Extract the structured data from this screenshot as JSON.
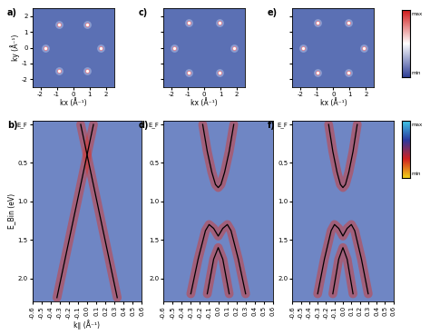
{
  "chart_data": [
    {
      "type": "scatter",
      "title": "a)",
      "xlabel": "kx (Å⁻¹)",
      "ylabel": "ky (Å⁻¹)",
      "xlim": [
        -2.5,
        2.5
      ],
      "ylim": [
        -2.5,
        2.5
      ],
      "xticks": [
        -2,
        -1,
        0,
        1,
        2
      ],
      "yticks": [
        -2,
        -1,
        0,
        1,
        2
      ],
      "tick_labels": true,
      "x": [
        1.7,
        0.85,
        -0.85,
        -1.7,
        -0.85,
        0.85
      ],
      "values": [
        0,
        1.47,
        1.47,
        0,
        -1.47,
        -1.47
      ],
      "color": "#ffffff"
    },
    {
      "type": "scatter",
      "title": "c)",
      "xlabel": "kx (Å⁻¹)",
      "xlim": [
        -2.5,
        2.5
      ],
      "ylim": [
        -2.5,
        2.5
      ],
      "xticks": [
        -2,
        -1,
        0,
        1,
        2
      ],
      "yticks": [
        -2,
        -1,
        0,
        1,
        2
      ],
      "tick_labels": "x",
      "x": [
        1.85,
        0.95,
        -0.95,
        -1.85,
        -0.95,
        0.95
      ],
      "values": [
        0,
        1.6,
        1.6,
        0,
        -1.6,
        -1.6
      ],
      "color": "#ffffff"
    },
    {
      "type": "scatter",
      "title": "e)",
      "xlabel": "kx (Å⁻¹)",
      "xlim": [
        -2.5,
        2.5
      ],
      "ylim": [
        -2.5,
        2.5
      ],
      "xticks": [
        -2,
        -1,
        0,
        1,
        2
      ],
      "yticks": [
        -2,
        -1,
        0,
        1,
        2
      ],
      "tick_labels": "x",
      "x": [
        1.85,
        0.95,
        -0.95,
        -1.85,
        -0.95,
        0.95
      ],
      "values": [
        0,
        1.6,
        1.6,
        0,
        -1.6,
        -1.6
      ],
      "color": "#ffffff"
    },
    {
      "type": "line",
      "title": "b)",
      "xlabel": "k∥ (Å⁻¹)",
      "ylabel": "E_Bin (eV)",
      "xlim": [
        -0.6,
        0.6
      ],
      "ylim": [
        2.3,
        -0.05
      ],
      "xticks": [
        -0.6,
        -0.5,
        -0.4,
        -0.3,
        -0.2,
        -0.1,
        0.0,
        0.1,
        0.2,
        0.3,
        0.4,
        0.5,
        0.6
      ],
      "yticks": [
        {
          "value": 0,
          "label": "E_F"
        },
        0.5,
        1.0,
        1.5,
        2.0
      ],
      "tick_labels": true,
      "series": [
        {
          "x": [
            -0.07,
            0.33
          ],
          "values": [
            0.0,
            2.25
          ],
          "color": "#000000"
        },
        {
          "x": [
            0.07,
            -0.33
          ],
          "values": [
            0.0,
            2.25
          ],
          "color": "#000000"
        }
      ]
    },
    {
      "type": "line",
      "title": "d)",
      "xlim": [
        -0.6,
        0.6
      ],
      "ylim": [
        2.3,
        -0.05
      ],
      "xticks": [
        -0.6,
        -0.5,
        -0.4,
        -0.3,
        -0.2,
        -0.1,
        0.0,
        0.1,
        0.2,
        0.3,
        0.4,
        0.5,
        0.6
      ],
      "yticks": [
        {
          "value": 0,
          "label": "E_F"
        },
        0.5,
        1.0,
        1.5,
        2.0
      ],
      "tick_labels": true,
      "series": [
        {
          "x": [
            -0.17,
            -0.12,
            -0.07,
            -0.03,
            0,
            0.03,
            0.07,
            0.12,
            0.17
          ],
          "values": [
            0.0,
            0.35,
            0.62,
            0.78,
            0.82,
            0.78,
            0.62,
            0.35,
            0.0
          ],
          "color": "#000000"
        },
        {
          "x": [
            -0.3,
            -0.22,
            -0.14,
            -0.1,
            -0.05,
            0,
            0.05,
            0.1,
            0.14,
            0.22,
            0.3
          ],
          "values": [
            2.2,
            1.75,
            1.38,
            1.3,
            1.35,
            1.45,
            1.35,
            1.3,
            1.38,
            1.75,
            2.2
          ],
          "color": "#000000"
        },
        {
          "x": [
            -0.12,
            -0.05,
            0,
            0.05,
            0.12
          ],
          "values": [
            2.2,
            1.75,
            1.6,
            1.75,
            2.2
          ],
          "color": "#000000"
        }
      ]
    },
    {
      "type": "line",
      "title": "f)",
      "xlim": [
        -0.6,
        0.6
      ],
      "ylim": [
        2.3,
        -0.05
      ],
      "xticks": [
        -0.6,
        -0.5,
        -0.4,
        -0.3,
        -0.2,
        -0.1,
        0.0,
        0.1,
        0.2,
        0.3,
        0.4,
        0.5,
        0.6
      ],
      "yticks": [
        {
          "value": 0,
          "label": "E_F"
        },
        0.5,
        1.0,
        1.5,
        2.0
      ],
      "tick_labels": true,
      "series": [
        {
          "x": [
            -0.17,
            -0.12,
            -0.07,
            -0.03,
            0,
            0.03,
            0.07,
            0.12,
            0.17
          ],
          "values": [
            0.0,
            0.35,
            0.62,
            0.78,
            0.82,
            0.78,
            0.62,
            0.35,
            0.0
          ],
          "color": "#000000"
        },
        {
          "x": [
            -0.3,
            -0.22,
            -0.14,
            -0.1,
            -0.05,
            0,
            0.05,
            0.1,
            0.14,
            0.22,
            0.3
          ],
          "values": [
            2.2,
            1.75,
            1.38,
            1.3,
            1.35,
            1.45,
            1.35,
            1.3,
            1.38,
            1.75,
            2.2
          ],
          "color": "#000000"
        },
        {
          "x": [
            -0.12,
            -0.05,
            0,
            0.05,
            0.12
          ],
          "values": [
            2.2,
            1.75,
            1.6,
            1.75,
            2.2
          ],
          "color": "#000000"
        }
      ]
    }
  ],
  "colorbars": [
    {
      "labels": [
        "max",
        "min"
      ],
      "colors": [
        "#2f3f96",
        "#ffffff",
        "#d01818"
      ]
    },
    {
      "labels": [
        "max",
        "min"
      ],
      "colors": [
        "#f2d21a",
        "#d02020",
        "#2a3aa0",
        "#40c8e8"
      ]
    }
  ]
}
